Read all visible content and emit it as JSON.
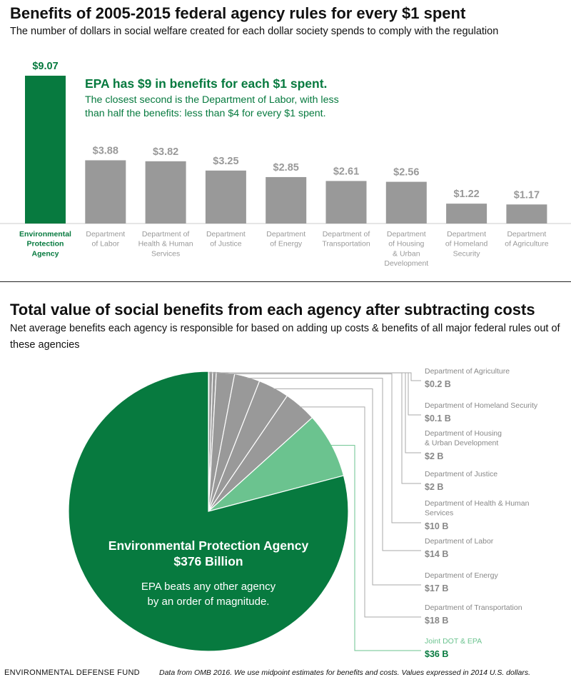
{
  "colors": {
    "epa_green": "#077a3f",
    "light_green": "#6bc38f",
    "bar_gray": "#999999",
    "text_gray": "#999999",
    "dark_text": "#111111"
  },
  "footer": {
    "source_left": "ENVIRONMENTAL DEFENSE FUND",
    "source_right": "Data from OMB 2016. We use midpoint estimates for benefits and costs. Values expressed in 2014 U.S. dollars."
  },
  "chart_data": [
    {
      "type": "bar",
      "title": "Benefits of 2005-2015 federal agency rules for every $1 spent",
      "subtitle": "The number of dollars in social welfare created for each dollar society spends to comply with the regulation",
      "categories": [
        [
          "Environmental",
          "Protection",
          "Agency"
        ],
        [
          "Department",
          "of Labor"
        ],
        [
          "Department of",
          "Health & Human",
          "Services"
        ],
        [
          "Department",
          "of Justice"
        ],
        [
          "Department",
          "of Energy"
        ],
        [
          "Department of",
          "Transportation"
        ],
        [
          "Department",
          "of Housing",
          "& Urban",
          "Development"
        ],
        [
          "Department",
          "of Homeland",
          "Security"
        ],
        [
          "Department",
          "of Agriculture"
        ]
      ],
      "values": [
        9.07,
        3.88,
        3.82,
        3.25,
        2.85,
        2.61,
        2.56,
        1.22,
        1.17
      ],
      "value_labels": [
        "$9.07",
        "$3.88",
        "$3.82",
        "$3.25",
        "$2.85",
        "$2.61",
        "$2.56",
        "$1.22",
        "$1.17"
      ],
      "highlight_index": 0,
      "annotation": {
        "headline": "EPA has $9 in benefits for each $1 spent.",
        "lines": [
          "The closest second is the Department of Labor, with less",
          "than half the benefits: less than $4 for every $1 spent."
        ]
      },
      "ylim": [
        0,
        9.07
      ]
    },
    {
      "type": "pie",
      "title": "Total value of social benefits from each agency after subtracting costs",
      "subtitle": "Net average benefits each agency is responsible for based on adding up costs & benefits of all major federal rules out of these agencies",
      "slices": [
        {
          "label": [
            "Department of Agriculture"
          ],
          "value": 0.2,
          "value_label": "$0.2 B"
        },
        {
          "label": [
            "Department of Homeland Security"
          ],
          "value": 0.1,
          "value_label": "$0.1 B"
        },
        {
          "label": [
            "Department of Housing",
            "& Urban Development"
          ],
          "value": 2,
          "value_label": "$2 B"
        },
        {
          "label": [
            "Department of Justice"
          ],
          "value": 2,
          "value_label": "$2 B"
        },
        {
          "label": [
            "Department of Health & Human",
            "Services"
          ],
          "value": 10,
          "value_label": "$10 B"
        },
        {
          "label": [
            "Department of Labor"
          ],
          "value": 14,
          "value_label": "$14 B"
        },
        {
          "label": [
            "Department of Energy"
          ],
          "value": 17,
          "value_label": "$17 B"
        },
        {
          "label": [
            "Department of Transportation"
          ],
          "value": 18,
          "value_label": "$18 B"
        },
        {
          "label": [
            "Joint DOT & EPA"
          ],
          "value": 36,
          "value_label": "$36 B",
          "highlight": "light"
        },
        {
          "label": [
            "Environmental Protection Agency"
          ],
          "value": 376,
          "value_label": "$376 Billion",
          "highlight": "main"
        }
      ],
      "epa_callout": {
        "name": "Environmental Protection Agency",
        "amount": "$376 Billion",
        "note": [
          "EPA beats any other agency",
          "by an order of magnitude."
        ]
      }
    }
  ]
}
